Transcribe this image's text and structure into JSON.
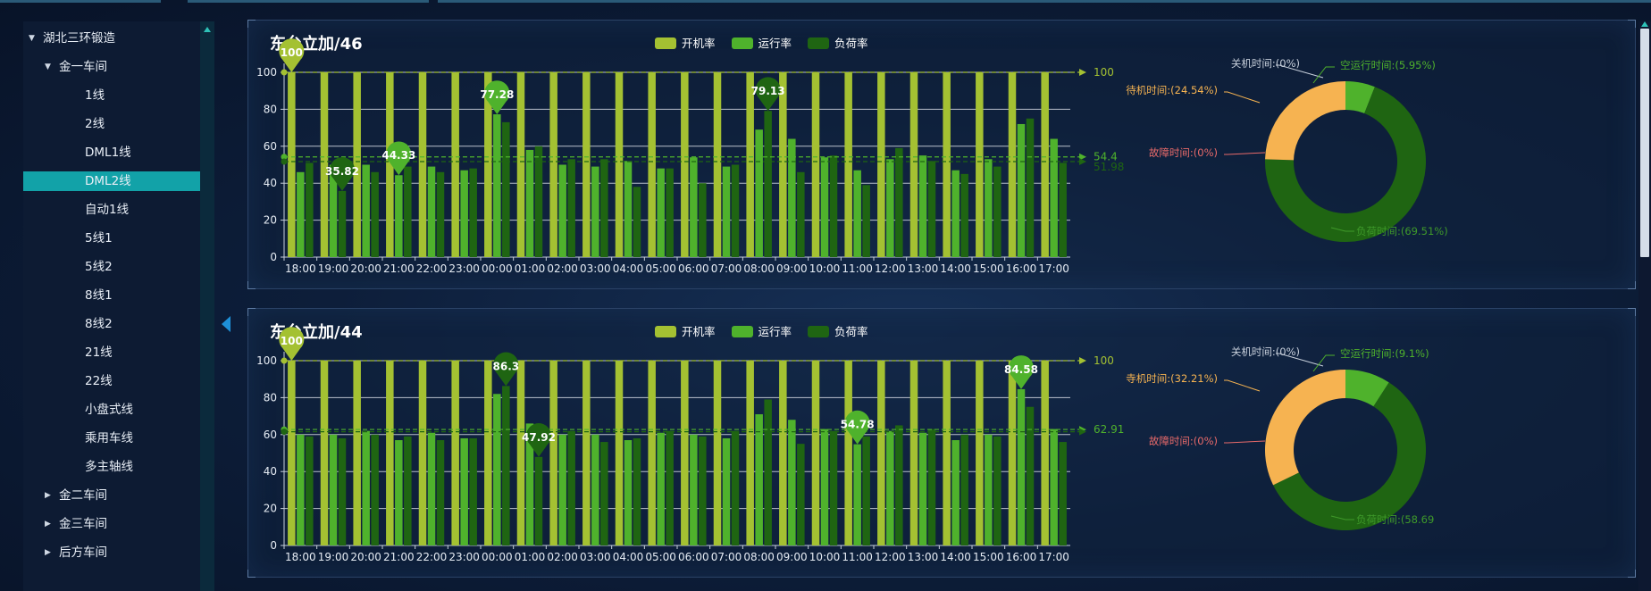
{
  "colors": {
    "kaiji": "#a4c132",
    "yunxing": "#4fb22c",
    "fuhe": "#1f6512",
    "selected": "#12a2a8",
    "pie_idle": "#f6b351",
    "pie_fault": "#e86a6a",
    "pie_off": "#c8d0dc"
  },
  "sidebar": {
    "items": [
      {
        "label": "湖北三环锻造",
        "level": 0,
        "toggle": "▼"
      },
      {
        "label": "金一车间",
        "level": 1,
        "toggle": "▼"
      },
      {
        "label": "1线",
        "level": 2,
        "toggle": ""
      },
      {
        "label": "2线",
        "level": 2,
        "toggle": ""
      },
      {
        "label": "DML1线",
        "level": 2,
        "toggle": ""
      },
      {
        "label": "DML2线",
        "level": 2,
        "toggle": "",
        "selected": true
      },
      {
        "label": "自动1线",
        "level": 2,
        "toggle": ""
      },
      {
        "label": "5线1",
        "level": 2,
        "toggle": ""
      },
      {
        "label": "5线2",
        "level": 2,
        "toggle": ""
      },
      {
        "label": "8线1",
        "level": 2,
        "toggle": ""
      },
      {
        "label": "8线2",
        "level": 2,
        "toggle": ""
      },
      {
        "label": "21线",
        "level": 2,
        "toggle": ""
      },
      {
        "label": "22线",
        "level": 2,
        "toggle": ""
      },
      {
        "label": "小盘式线",
        "level": 2,
        "toggle": ""
      },
      {
        "label": "乘用车线",
        "level": 2,
        "toggle": ""
      },
      {
        "label": "多主轴线",
        "level": 2,
        "toggle": ""
      },
      {
        "label": "金二车间",
        "level": 1,
        "toggle": "▶"
      },
      {
        "label": "金三车间",
        "level": 1,
        "toggle": "▶"
      },
      {
        "label": "后方车间",
        "level": 1,
        "toggle": "▶"
      }
    ]
  },
  "legend": [
    "开机率",
    "运行率",
    "负荷率"
  ],
  "chart_data": [
    {
      "type": "bar",
      "title": "东台立加/46",
      "categories": [
        "18:00",
        "19:00",
        "20:00",
        "21:00",
        "22:00",
        "23:00",
        "00:00",
        "01:00",
        "02:00",
        "03:00",
        "04:00",
        "05:00",
        "06:00",
        "07:00",
        "08:00",
        "09:00",
        "10:00",
        "11:00",
        "12:00",
        "13:00",
        "14:00",
        "15:00",
        "16:00",
        "17:00"
      ],
      "series": [
        {
          "name": "开机率",
          "values": [
            100,
            100,
            100,
            100,
            100,
            100,
            100,
            100,
            100,
            100,
            100,
            100,
            100,
            100,
            100,
            100,
            100,
            100,
            100,
            100,
            100,
            100,
            100,
            100
          ]
        },
        {
          "name": "运行率",
          "values": [
            46,
            50,
            50,
            44.33,
            49,
            47,
            77.28,
            58,
            50,
            49,
            52,
            48,
            54,
            49,
            69,
            64,
            54,
            47,
            53,
            55,
            47,
            53,
            72,
            64
          ]
        },
        {
          "name": "负荷率",
          "values": [
            51,
            35.82,
            46,
            49,
            46,
            48,
            73,
            60,
            53,
            53,
            38,
            48,
            40,
            50,
            79.13,
            46,
            55,
            39,
            59,
            52,
            45,
            49,
            75,
            51
          ]
        }
      ],
      "markers": [
        {
          "index": 0,
          "series": 0,
          "label": "100"
        },
        {
          "index": 1,
          "series": 2,
          "label": "35.82"
        },
        {
          "index": 3,
          "series": 1,
          "label": "44.33"
        },
        {
          "index": 6,
          "series": 1,
          "label": "77.28"
        },
        {
          "index": 14,
          "series": 2,
          "label": "79.13"
        }
      ],
      "markline_labels": [
        "100",
        "54.4",
        "51.98"
      ],
      "yticks": [
        "0",
        "20",
        "40",
        "60",
        "80",
        "100"
      ],
      "ylim": [
        0,
        100
      ],
      "pie": {
        "labels": [
          {
            "text": "关机时间:(0%)",
            "value": 0
          },
          {
            "text": "空运行时间:(5.95%)",
            "value": 5.95
          },
          {
            "text": "待机时间:(24.54%)",
            "value": 24.54
          },
          {
            "text": "故障时间:(0%)",
            "value": 0
          },
          {
            "text": "负荷时间:(69.51%)",
            "value": 69.51
          }
        ]
      }
    },
    {
      "type": "bar",
      "title": "东台立加/44",
      "categories": [
        "18:00",
        "19:00",
        "20:00",
        "21:00",
        "22:00",
        "23:00",
        "00:00",
        "01:00",
        "02:00",
        "03:00",
        "04:00",
        "05:00",
        "06:00",
        "07:00",
        "08:00",
        "09:00",
        "10:00",
        "11:00",
        "12:00",
        "13:00",
        "14:00",
        "15:00",
        "16:00",
        "17:00"
      ],
      "series": [
        {
          "name": "开机率",
          "values": [
            100,
            100,
            100,
            100,
            100,
            100,
            100,
            100,
            100,
            100,
            100,
            100,
            100,
            100,
            100,
            100,
            100,
            100,
            100,
            100,
            100,
            100,
            100,
            100
          ]
        },
        {
          "name": "运行率",
          "values": [
            60,
            60,
            62,
            57,
            61,
            58,
            82,
            66,
            60,
            60,
            57,
            61,
            60,
            58,
            71,
            68,
            63,
            54.78,
            62,
            61,
            57,
            60,
            84.58,
            63
          ]
        },
        {
          "name": "负荷率",
          "values": [
            59,
            58,
            60,
            59,
            57,
            58,
            86.3,
            47.92,
            62,
            56,
            58,
            62,
            59,
            62,
            79,
            55,
            62,
            59,
            65,
            63,
            60,
            59,
            75,
            56
          ]
        }
      ],
      "markers": [
        {
          "index": 0,
          "series": 0,
          "label": "100"
        },
        {
          "index": 6,
          "series": 2,
          "label": "86.3"
        },
        {
          "index": 7,
          "series": 2,
          "label": "47.92"
        },
        {
          "index": 17,
          "series": 1,
          "label": "54.78"
        },
        {
          "index": 22,
          "series": 1,
          "label": "84.58"
        }
      ],
      "markline_labels": [
        "100",
        "62.91"
      ],
      "yticks": [
        "0",
        "20",
        "40",
        "60",
        "80",
        "100"
      ],
      "ylim": [
        0,
        100
      ],
      "pie": {
        "labels": [
          {
            "text": "关机时间:(0%)",
            "value": 0
          },
          {
            "text": "空运行时间:(9.1%)",
            "value": 9.1
          },
          {
            "text": "寺机时间:(32.21%)",
            "value": 32.21
          },
          {
            "text": "故障时间:(0%)",
            "value": 0
          },
          {
            "text": "负荷时间:(58.69",
            "value": 58.69
          }
        ]
      }
    }
  ]
}
